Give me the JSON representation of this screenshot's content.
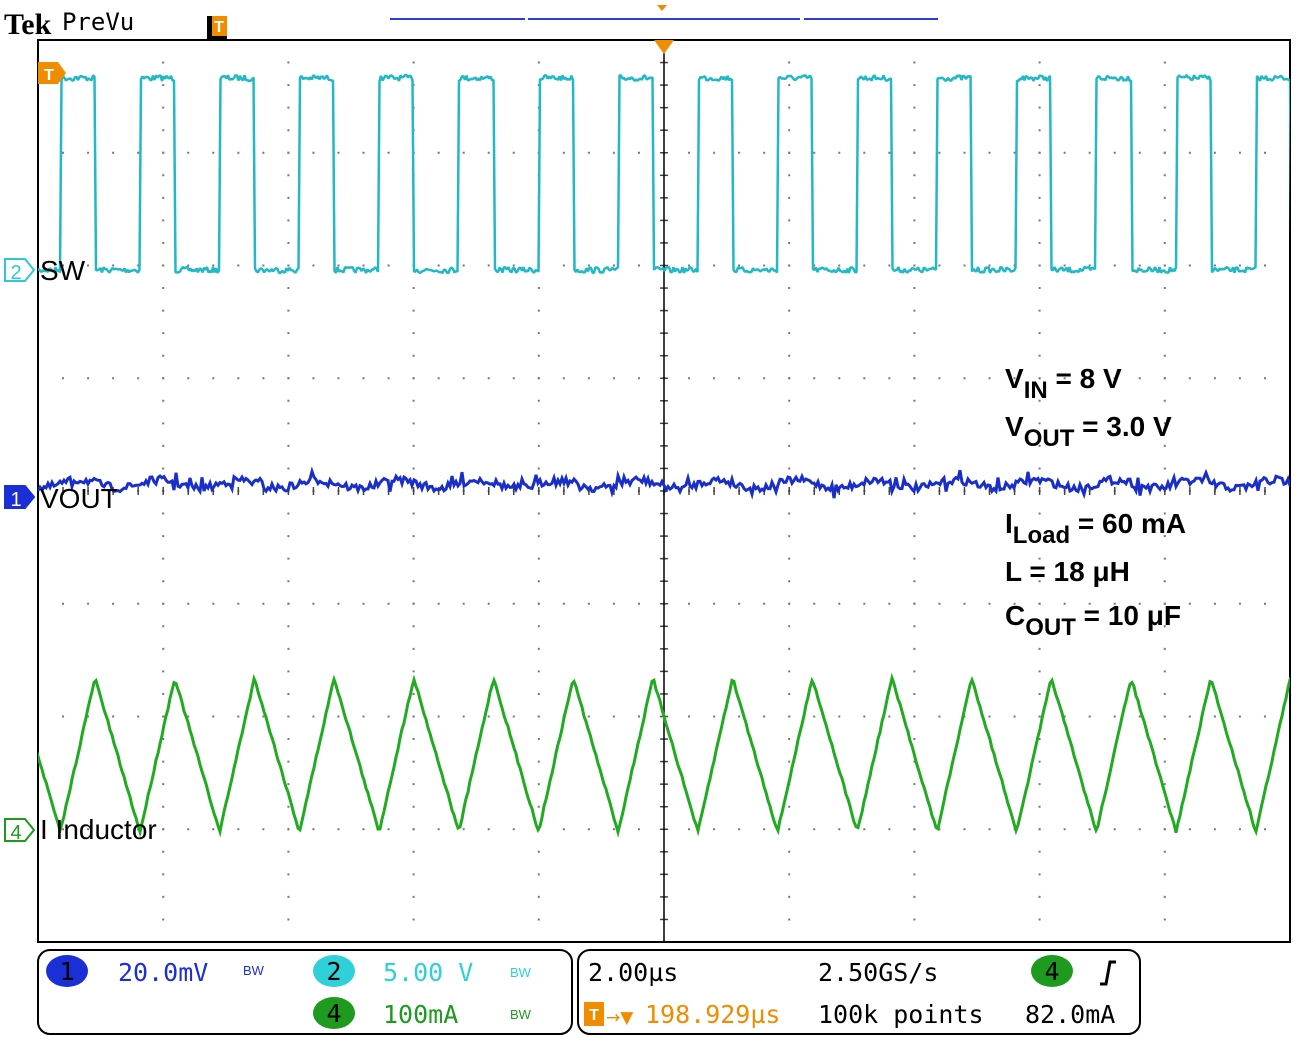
{
  "header": {
    "brand": "Tek",
    "mode": "PreVu",
    "trigger_icon": "T"
  },
  "traces": [
    {
      "channel": "2",
      "label": "SW"
    },
    {
      "channel": "1",
      "label": "VOUT"
    },
    {
      "channel": "4",
      "label": "I Inductor"
    }
  ],
  "conditions": [
    {
      "symbol": "V",
      "subscript": "IN",
      "value": " = 8 V"
    },
    {
      "symbol": "V",
      "subscript": "OUT",
      "value": " = 3.0 V"
    },
    {
      "symbol": "I",
      "subscript": "Load",
      "value": " = 60 mA"
    },
    {
      "symbol": "L",
      "value": " = 18 μH"
    },
    {
      "symbol": "C",
      "subscript": "OUT",
      "value": " = 10 μF"
    }
  ],
  "readout": {
    "scales": [
      {
        "channel": "1",
        "value": "20.0mV",
        "bw": "BW"
      },
      {
        "channel": "2",
        "value": "5.00 V",
        "bw": "BW"
      },
      {
        "channel": "4",
        "value": "100mA",
        "bw": "BW"
      }
    ],
    "time_per_div": "2.00µs",
    "sample_rate": "2.50GS/s",
    "record_length": "100k points",
    "trigger_icon": "T",
    "position_arrow": "→▼",
    "trigger_position": "198.929µs",
    "trigger_source": "4",
    "trigger_level": "82.0mA"
  }
}
